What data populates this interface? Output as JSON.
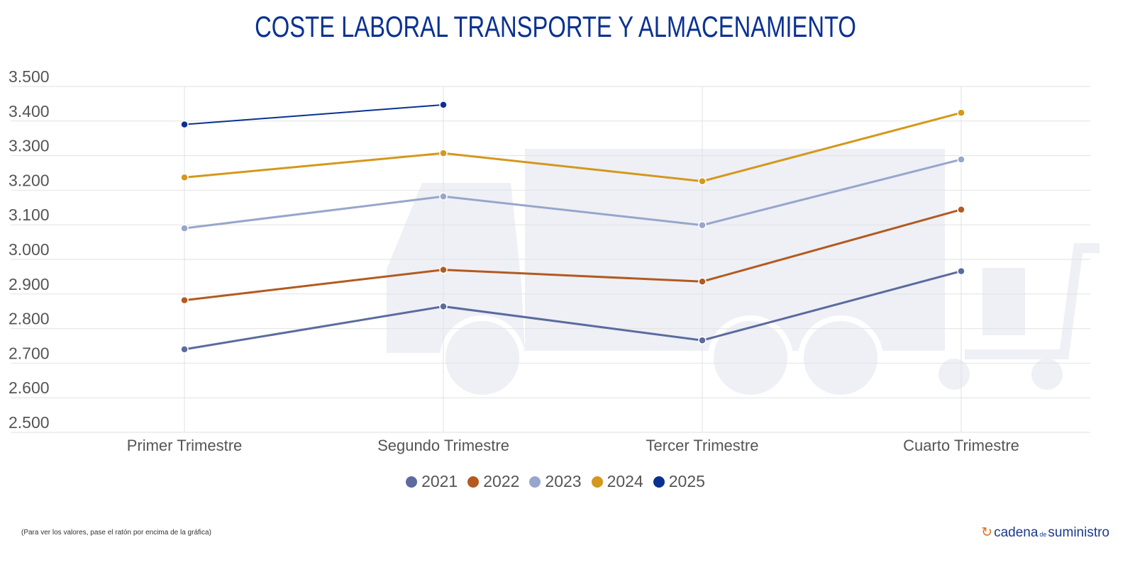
{
  "chart_data": {
    "type": "line",
    "title": "COSTE LABORAL TRANSPORTE Y ALMACENAMIENTO",
    "categories": [
      "Primer Trimestre",
      "Segundo Trimestre",
      "Tercer Trimestre",
      "Cuarto Trimestre"
    ],
    "ylim": [
      2500,
      3500
    ],
    "yticks": [
      "3.500",
      "3.400",
      "3.300",
      "3.200",
      "3.100",
      "3.000",
      "2.900",
      "2.800",
      "2.700",
      "2.600",
      "2.500"
    ],
    "grid": true,
    "legend_position": "bottom",
    "series": [
      {
        "name": "2021",
        "color": "#5b6b9e",
        "values": [
          2740,
          2864,
          2766,
          2966
        ]
      },
      {
        "name": "2022",
        "color": "#b35a1f",
        "values": [
          2882,
          2970,
          2936,
          3144
        ]
      },
      {
        "name": "2023",
        "color": "#97a6cc",
        "values": [
          3090,
          3182,
          3099,
          3289
        ]
      },
      {
        "name": "2024",
        "color": "#d4981a",
        "values": [
          3237,
          3307,
          3226,
          3424
        ]
      },
      {
        "name": "2025",
        "color": "#0a3192",
        "values": [
          3390,
          3447,
          null,
          null
        ]
      }
    ]
  },
  "footer": {
    "note": "(Para ver los valores, pase el ratón por encima de la gráfica)",
    "logo_main": "cadena",
    "logo_de": "de",
    "logo_end": "suministro"
  }
}
